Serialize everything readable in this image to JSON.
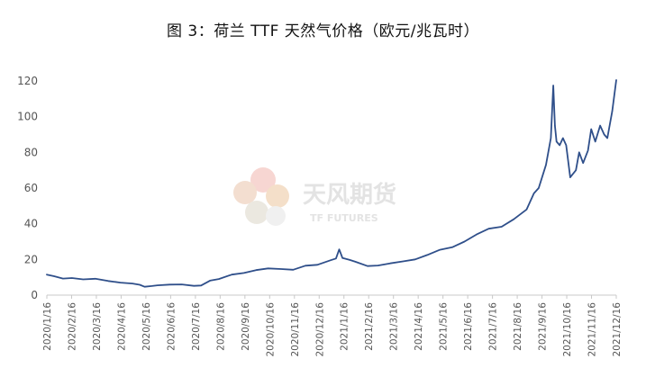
{
  "chart_data": {
    "type": "line",
    "title": "图 3：荷兰 TTF 天然气价格（欧元/兆瓦时）",
    "xlabel": "",
    "ylabel": "",
    "ylim": [
      0,
      120
    ],
    "yticks": [
      0,
      20,
      40,
      60,
      80,
      100,
      120
    ],
    "x_tick_labels": [
      "2020/1/16",
      "2020/2/16",
      "2020/3/16",
      "2020/4/16",
      "2020/5/16",
      "2020/6/16",
      "2020/7/16",
      "2020/8/16",
      "2020/9/16",
      "2020/10/16",
      "2020/11/16",
      "2020/12/16",
      "2021/1/16",
      "2021/2/16",
      "2021/3/16",
      "2021/4/16",
      "2021/5/16",
      "2021/6/16",
      "2021/7/16",
      "2021/8/16",
      "2021/9/16",
      "2021/10/16",
      "2021/11/16",
      "2021/12/16"
    ],
    "grid": false,
    "legend": "none",
    "series_color": "#2f4f8a",
    "series": [
      {
        "x": [
          "2020-01-16",
          "2020-01-25",
          "2020-02-05",
          "2020-02-16",
          "2020-03-01",
          "2020-03-16",
          "2020-04-01",
          "2020-04-16",
          "2020-05-01",
          "2020-05-10",
          "2020-05-16",
          "2020-05-25",
          "2020-06-01",
          "2020-06-16",
          "2020-07-01",
          "2020-07-16",
          "2020-07-25",
          "2020-08-05",
          "2020-08-16",
          "2020-09-01",
          "2020-09-16",
          "2020-10-01",
          "2020-10-16",
          "2020-11-01",
          "2020-11-16",
          "2020-12-01",
          "2020-12-16",
          "2021-01-01",
          "2021-01-08",
          "2021-01-12",
          "2021-01-16",
          "2021-01-25",
          "2021-02-01",
          "2021-02-16",
          "2021-03-01",
          "2021-03-16",
          "2021-04-01",
          "2021-04-16",
          "2021-05-01",
          "2021-05-16",
          "2021-06-01",
          "2021-06-16",
          "2021-07-01",
          "2021-07-16",
          "2021-08-01",
          "2021-08-16",
          "2021-09-01",
          "2021-09-10",
          "2021-09-16",
          "2021-09-25",
          "2021-10-01",
          "2021-10-04",
          "2021-10-06",
          "2021-10-08",
          "2021-10-12",
          "2021-10-16",
          "2021-10-20",
          "2021-10-25",
          "2021-11-01",
          "2021-11-05",
          "2021-11-10",
          "2021-11-16",
          "2021-11-20",
          "2021-11-25",
          "2021-12-01",
          "2021-12-06",
          "2021-12-10",
          "2021-12-16",
          "2021-12-21"
        ],
        "y": [
          11.5,
          10.6,
          9.3,
          9.6,
          8.8,
          9.2,
          7.9,
          7.0,
          6.5,
          5.8,
          4.7,
          5.1,
          5.5,
          5.9,
          6.0,
          5.2,
          5.4,
          8.1,
          9.0,
          11.5,
          12.4,
          14.0,
          15.0,
          14.6,
          14.2,
          16.5,
          17.0,
          19.5,
          20.5,
          25.6,
          20.8,
          19.7,
          18.7,
          16.3,
          16.6,
          17.8,
          18.9,
          20.0,
          22.5,
          25.3,
          26.8,
          30.0,
          34.0,
          37.2,
          38.3,
          42.5,
          48.0,
          57.0,
          60.0,
          73.0,
          88.0,
          117.5,
          95.0,
          86.0,
          84.0,
          88.0,
          84.0,
          66.0,
          70.0,
          80.0,
          74.0,
          81.0,
          93.0,
          86.0,
          95.0,
          90.0,
          88.0,
          103.0,
          120.5
        ]
      }
    ]
  },
  "watermark": {
    "brand_cn": "天风期货",
    "brand_en": "TF FUTURES"
  }
}
